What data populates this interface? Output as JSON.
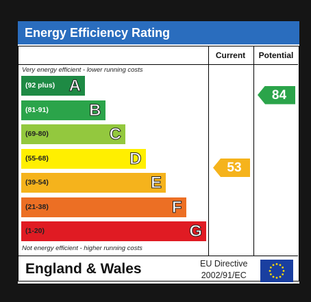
{
  "title": "Energy Efficiency Rating",
  "columns": {
    "current": "Current",
    "potential": "Potential"
  },
  "notes": {
    "top": "Very energy efficient - lower running costs",
    "bottom": "Not energy efficient - higher running costs"
  },
  "chart_data": {
    "type": "bar",
    "title": "Energy Efficiency Rating",
    "bands": [
      {
        "letter": "A",
        "range": "(92 plus)",
        "color": "#1e8a44",
        "range_color": "#ffffff"
      },
      {
        "letter": "B",
        "range": "(81-91)",
        "color": "#2ba44a",
        "range_color": "#ffffff"
      },
      {
        "letter": "C",
        "range": "(69-80)",
        "color": "#93c83e",
        "range_color": "#222222"
      },
      {
        "letter": "D",
        "range": "(55-68)",
        "color": "#ffef00",
        "range_color": "#222222"
      },
      {
        "letter": "E",
        "range": "(39-54)",
        "color": "#f5b31c",
        "range_color": "#222222"
      },
      {
        "letter": "F",
        "range": "(21-38)",
        "color": "#ec6f24",
        "range_color": "#222222"
      },
      {
        "letter": "G",
        "range": "(1-20)",
        "color": "#e01b23",
        "range_color": "#222222"
      }
    ],
    "current": {
      "value": 53,
      "label": "53",
      "band": "E",
      "color": "#f5b31c"
    },
    "potential": {
      "value": 84,
      "label": "84",
      "band": "B",
      "color": "#2ba44a"
    }
  },
  "footer": {
    "region": "England & Wales",
    "directive_line1": "EU Directive",
    "directive_line2": "2002/91/EC"
  }
}
